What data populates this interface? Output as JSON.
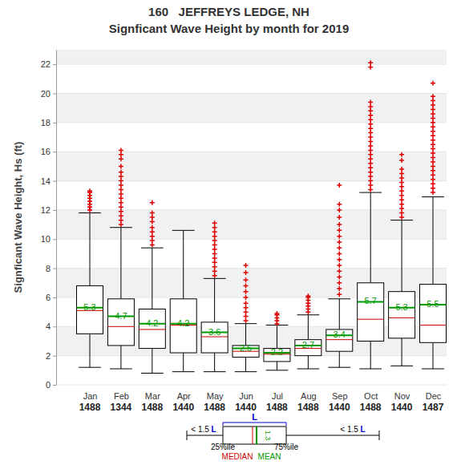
{
  "chart_data": {
    "type": "box",
    "title": "160   JEFFREYS LEDGE, NH",
    "subtitle": "Signficant Wave Height by month for 2019",
    "y_label": "Signficant Wave Height, Hs (ft)",
    "categories": [
      "Jan",
      "Feb",
      "Mar",
      "Apr",
      "May",
      "Jun",
      "Jul",
      "Aug",
      "Sep",
      "Oct",
      "Nov",
      "Dec"
    ],
    "counts": [
      1488,
      1344,
      1488,
      1440,
      1488,
      1440,
      1488,
      1488,
      1440,
      1488,
      1440,
      1487
    ],
    "whisker_low": [
      1.2,
      1.1,
      0.8,
      0.9,
      0.9,
      0.9,
      1.0,
      1.1,
      1.2,
      1.1,
      1.3,
      1.1
    ],
    "q1": [
      3.5,
      2.7,
      2.5,
      2.2,
      2.2,
      1.9,
      1.6,
      2.0,
      2.3,
      3.0,
      3.2,
      2.9
    ],
    "q3": [
      6.8,
      5.9,
      5.2,
      5.9,
      4.3,
      2.7,
      2.5,
      3.1,
      3.8,
      7.0,
      6.4,
      6.9
    ],
    "whisker_high": [
      11.8,
      10.8,
      9.4,
      10.6,
      7.3,
      4.2,
      4.1,
      4.8,
      5.9,
      13.2,
      11.3,
      12.9
    ],
    "series": [
      {
        "name": "MEDIAN",
        "color": "#cc0000",
        "values": [
          5.1,
          4.0,
          3.8,
          4.1,
          3.3,
          2.3,
          2.1,
          2.5,
          3.1,
          4.5,
          4.6,
          4.1
        ]
      },
      {
        "name": "MEAN",
        "color": "#009900",
        "values": [
          5.3,
          4.7,
          4.2,
          4.2,
          3.6,
          2.5,
          2.2,
          2.7,
          3.4,
          5.7,
          5.3,
          5.5
        ]
      }
    ],
    "data_labels": true,
    "outliers": {
      "color": "#dd0000",
      "marker": "plus",
      "values": [
        [
          12.0,
          12.2,
          12.4,
          12.6,
          12.8,
          13.0,
          13.2,
          13.3
        ],
        [
          11.0,
          11.3,
          11.6,
          11.9,
          12.2,
          12.5,
          12.8,
          13.1,
          13.4,
          13.7,
          14.0,
          14.3,
          14.6,
          15.0,
          15.5,
          15.8,
          16.1
        ],
        [
          9.6,
          9.9,
          10.2,
          10.5,
          10.8,
          11.2,
          11.5,
          11.8,
          12.5
        ],
        [],
        [
          7.5,
          7.8,
          8.1,
          8.4,
          8.7,
          9.0,
          9.3,
          9.6,
          9.9,
          10.2,
          10.5,
          10.8,
          11.1
        ],
        [
          4.4,
          4.7,
          5.0,
          5.3,
          5.6,
          6.0,
          6.4,
          6.8,
          7.2,
          7.7,
          8.2
        ],
        [
          4.2,
          4.4,
          4.6,
          4.8,
          4.9
        ],
        [
          5.0,
          5.2,
          5.4,
          5.6,
          5.8,
          6.0,
          6.1
        ],
        [
          6.2,
          6.6,
          7.0,
          7.4,
          7.8,
          8.2,
          8.6,
          9.0,
          9.4,
          9.8,
          10.2,
          10.6,
          11.0,
          11.5,
          12.0,
          12.4,
          13.7
        ],
        [
          13.4,
          13.7,
          14.0,
          14.3,
          14.6,
          14.9,
          15.2,
          15.5,
          15.8,
          16.1,
          16.4,
          16.7,
          17.0,
          17.3,
          17.6,
          17.9,
          18.2,
          18.5,
          18.8,
          19.1,
          19.4,
          21.8,
          22.1
        ],
        [
          11.5,
          11.8,
          12.1,
          12.4,
          12.7,
          13.0,
          13.3,
          13.6,
          13.9,
          14.2,
          14.5,
          14.8,
          15.4,
          15.8
        ],
        [
          13.2,
          13.5,
          13.8,
          14.1,
          14.4,
          14.7,
          15.0,
          15.3,
          15.6,
          15.9,
          16.2,
          16.5,
          16.8,
          17.1,
          17.4,
          17.7,
          18.0,
          18.3,
          18.6,
          18.9,
          19.2,
          19.5,
          19.8,
          20.7
        ]
      ]
    },
    "ylim": [
      0,
      23
    ],
    "yticks": [
      0,
      2,
      4,
      6,
      8,
      10,
      12,
      14,
      16,
      18,
      20,
      22
    ],
    "grid": true,
    "annotations": [
      "< 1.5 L",
      "L",
      "< 1.5 L",
      "1.3",
      "25%ile",
      "75%ile"
    ]
  }
}
